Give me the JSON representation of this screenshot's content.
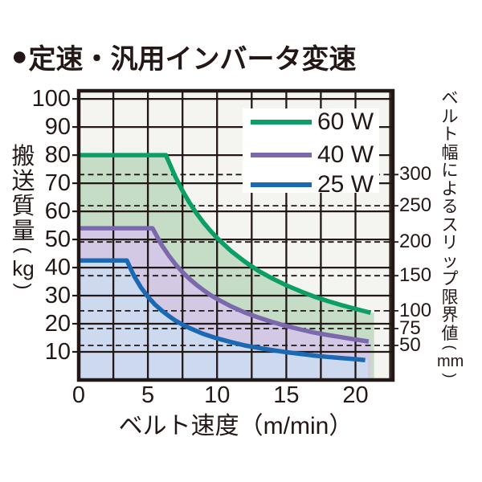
{
  "title": {
    "bullet": "●",
    "text": "定速・汎用インバータ変速"
  },
  "axes": {
    "left": {
      "text": "搬送質量",
      "paren_open": "(",
      "unit": "kg",
      "paren_close": ")"
    },
    "right": {
      "text": "ベルト幅によるスリップ限界値",
      "paren_open": "(",
      "unit": "mm",
      "paren_close": ")"
    },
    "x": {
      "text": "ベルト速度（m/min）"
    }
  },
  "chart_data": {
    "type": "line",
    "title": "定速・汎用インバータ変速",
    "xlabel": "ベルト速度（m/min）",
    "ylabel": "搬送質量（kg）",
    "y2label": "ベルト幅によるスリップ限界値（mm）",
    "xlim": [
      0,
      22.7
    ],
    "ylim": [
      0,
      102.9
    ],
    "x_ticks": [
      0,
      5,
      10,
      15,
      20
    ],
    "y_ticks": [
      10,
      20,
      30,
      40,
      50,
      60,
      70,
      80,
      90,
      100
    ],
    "grid": {
      "x_step": 2.5,
      "y_step": 10,
      "style": "solid"
    },
    "plot_bg": "#f4f4f1",
    "grid_color": "#231815",
    "text_color": "#231815",
    "legend_bg": "#ffffff",
    "legend_position": "upper-right-inside",
    "series": [
      {
        "id": "60w",
        "name": "60 W",
        "color": "#0b9f66",
        "fill": "#c5dcc6",
        "flat_load_kg": 80,
        "fill_end_x": 21.35,
        "points": [
          [
            0,
            80
          ],
          [
            6.3,
            80
          ],
          [
            7,
            72.1
          ],
          [
            7.5,
            67.3
          ],
          [
            8,
            63.1
          ],
          [
            8.5,
            59.4
          ],
          [
            9,
            56.1
          ],
          [
            9.5,
            53.2
          ],
          [
            10,
            50.5
          ],
          [
            11,
            45.9
          ],
          [
            12,
            42.1
          ],
          [
            13,
            38.8
          ],
          [
            14,
            36.1
          ],
          [
            15,
            33.7
          ],
          [
            16,
            31.6
          ],
          [
            17,
            29.7
          ],
          [
            18,
            28.1
          ],
          [
            19,
            26.6
          ],
          [
            20,
            25.3
          ],
          [
            21.1,
            23.9
          ]
        ]
      },
      {
        "id": "40w",
        "name": "40 W",
        "color": "#7c68ad",
        "fill": "#d3c9e4",
        "flat_load_kg": 54,
        "fill_end_x": 21.1,
        "points": [
          [
            0,
            54
          ],
          [
            5.33,
            54
          ],
          [
            6,
            48
          ],
          [
            6.5,
            44.3
          ],
          [
            7,
            41.1
          ],
          [
            7.5,
            38.4
          ],
          [
            8,
            36
          ],
          [
            8.5,
            33.9
          ],
          [
            9,
            32
          ],
          [
            9.5,
            30.3
          ],
          [
            10,
            28.8
          ],
          [
            11,
            26.2
          ],
          [
            12,
            24
          ],
          [
            13,
            22.2
          ],
          [
            14,
            20.6
          ],
          [
            15,
            19.2
          ],
          [
            16,
            18
          ],
          [
            17,
            16.9
          ],
          [
            18,
            16
          ],
          [
            19,
            15.2
          ],
          [
            20,
            14.4
          ],
          [
            20.95,
            13.7
          ]
        ]
      },
      {
        "id": "25w",
        "name": "25 W",
        "color": "#1b69b5",
        "fill": "#ccd9ee",
        "flat_load_kg": 42.5,
        "fill_end_x": 20.9,
        "points": [
          [
            0,
            42.5
          ],
          [
            3.48,
            42.5
          ],
          [
            4,
            37
          ],
          [
            4.5,
            32.9
          ],
          [
            5,
            29.6
          ],
          [
            5.5,
            26.9
          ],
          [
            6,
            24.7
          ],
          [
            6.5,
            22.8
          ],
          [
            7,
            21.1
          ],
          [
            7.5,
            19.7
          ],
          [
            8,
            18.5
          ],
          [
            9,
            16.4
          ],
          [
            10,
            14.8
          ],
          [
            11,
            13.5
          ],
          [
            12,
            12.3
          ],
          [
            13,
            11.4
          ],
          [
            14,
            10.6
          ],
          [
            15,
            9.9
          ],
          [
            16,
            9.3
          ],
          [
            17,
            8.7
          ],
          [
            18,
            8.2
          ],
          [
            19,
            7.8
          ],
          [
            20,
            7.4
          ],
          [
            20.7,
            7.1
          ]
        ]
      }
    ],
    "y2_dashed_lines": [
      {
        "label": 300,
        "kg": 73.1
      },
      {
        "label": 250,
        "kg": 62.0
      },
      {
        "label": 200,
        "kg": 49.1
      },
      {
        "label": 150,
        "kg": 37.1
      },
      {
        "label": 100,
        "kg": 24.6
      },
      {
        "label": 75,
        "kg": 18.3
      },
      {
        "label": 50,
        "kg": 12.3
      }
    ]
  }
}
